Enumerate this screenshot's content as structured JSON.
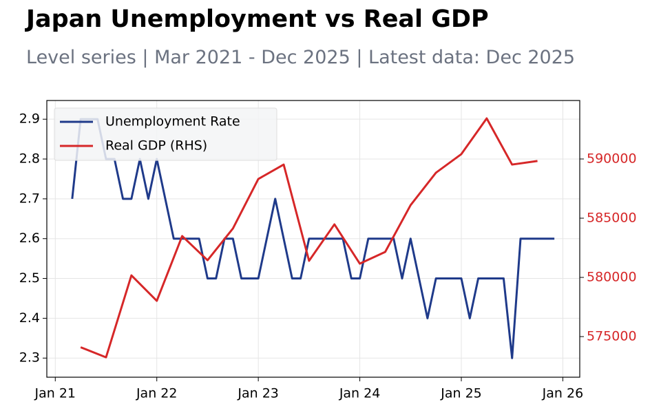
{
  "chart_data": {
    "type": "line",
    "title": "Japan Unemployment vs Real GDP",
    "subtitle": "Level series | Mar 2021 - Dec 2025 | Latest data: Dec 2025",
    "xlim": [
      "2020-12",
      "2026-03"
    ],
    "xticks": [
      {
        "value": "2021-01",
        "label": "Jan 21"
      },
      {
        "value": "2022-01",
        "label": "Jan 22"
      },
      {
        "value": "2023-01",
        "label": "Jan 23"
      },
      {
        "value": "2024-01",
        "label": "Jan 24"
      },
      {
        "value": "2025-01",
        "label": "Jan 25"
      },
      {
        "value": "2026-01",
        "label": "Jan 26"
      }
    ],
    "ylim": [
      2.252,
      2.947
    ],
    "yticks": [
      2.3,
      2.4,
      2.5,
      2.6,
      2.7,
      2.8,
      2.9
    ],
    "y2lim": [
      571570,
      594940
    ],
    "y2ticks": [
      575000,
      580000,
      585000,
      590000
    ],
    "y2_color": "#d62728",
    "grid": true,
    "legend": "upper-left",
    "series": [
      {
        "name": "Unemployment Rate",
        "color": "#1f3a8a",
        "x": [
          "2021-03",
          "2021-04",
          "2021-05",
          "2021-06",
          "2021-07",
          "2021-08",
          "2021-09",
          "2021-10",
          "2021-11",
          "2021-12",
          "2022-01",
          "2022-02",
          "2022-03",
          "2022-04",
          "2022-05",
          "2022-06",
          "2022-07",
          "2022-08",
          "2022-09",
          "2022-10",
          "2022-11",
          "2022-12",
          "2023-01",
          "2023-02",
          "2023-03",
          "2023-04",
          "2023-05",
          "2023-06",
          "2023-07",
          "2023-08",
          "2023-09",
          "2023-10",
          "2023-11",
          "2023-12",
          "2024-01",
          "2024-02",
          "2024-03",
          "2024-04",
          "2024-05",
          "2024-06",
          "2024-07",
          "2024-08",
          "2024-09",
          "2024-10",
          "2024-11",
          "2024-12",
          "2025-01",
          "2025-02",
          "2025-03",
          "2025-04",
          "2025-05",
          "2025-06",
          "2025-07",
          "2025-08",
          "2025-09",
          "2025-10",
          "2025-11",
          "2025-12"
        ],
        "values": [
          2.7,
          2.9,
          2.9,
          2.9,
          2.8,
          2.8,
          2.7,
          2.7,
          2.8,
          2.7,
          2.8,
          2.7,
          2.6,
          2.6,
          2.6,
          2.6,
          2.5,
          2.5,
          2.6,
          2.6,
          2.5,
          2.5,
          2.5,
          2.6,
          2.7,
          2.6,
          2.5,
          2.5,
          2.6,
          2.6,
          2.6,
          2.6,
          2.6,
          2.5,
          2.5,
          2.6,
          2.6,
          2.6,
          2.6,
          2.5,
          2.6,
          2.5,
          2.4,
          2.5,
          2.5,
          2.5,
          2.5,
          2.4,
          2.5,
          2.5,
          2.5,
          2.5,
          2.3,
          2.6,
          2.6,
          2.6,
          2.6,
          2.6
        ]
      },
      {
        "name": "Real GDP (RHS)",
        "color": "#d62728",
        "axis": "y2",
        "x": [
          "2021-04",
          "2021-07",
          "2021-10",
          "2022-01",
          "2022-04",
          "2022-07",
          "2022-10",
          "2023-01",
          "2023-04",
          "2023-07",
          "2023-10",
          "2024-01",
          "2024-04",
          "2024-07",
          "2024-10",
          "2025-01",
          "2025-04",
          "2025-07",
          "2025-10"
        ],
        "values": [
          574100,
          573250,
          580170,
          578020,
          583490,
          581450,
          584130,
          588310,
          589530,
          581400,
          584480,
          581160,
          582150,
          586100,
          588840,
          590410,
          593430,
          589530,
          589830
        ]
      }
    ]
  }
}
